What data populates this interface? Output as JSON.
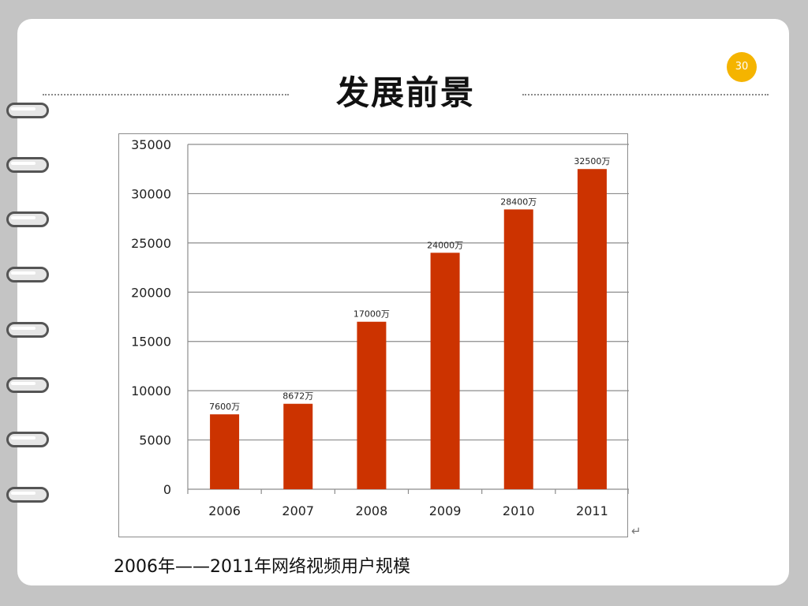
{
  "slide": {
    "title": "发展前景",
    "page_number": "30",
    "caption": "2006年——2011年网络视频用户规模",
    "return_mark": "↵",
    "accent_color": "#f5b400"
  },
  "chart_data": {
    "type": "bar",
    "categories": [
      "2006",
      "2007",
      "2008",
      "2009",
      "2010",
      "2011"
    ],
    "values": [
      7600,
      8672,
      17000,
      24000,
      28400,
      32500
    ],
    "data_labels": [
      "7600万",
      "8672万",
      "17000万",
      "24000万",
      "28400万",
      "32500万"
    ],
    "title": "",
    "xlabel": "",
    "ylabel": "",
    "ylim": [
      0,
      35000
    ],
    "yticks": [
      0,
      5000,
      10000,
      15000,
      20000,
      25000,
      30000,
      35000
    ],
    "bar_color": "#cc3300",
    "grid": true,
    "legend": "none"
  }
}
